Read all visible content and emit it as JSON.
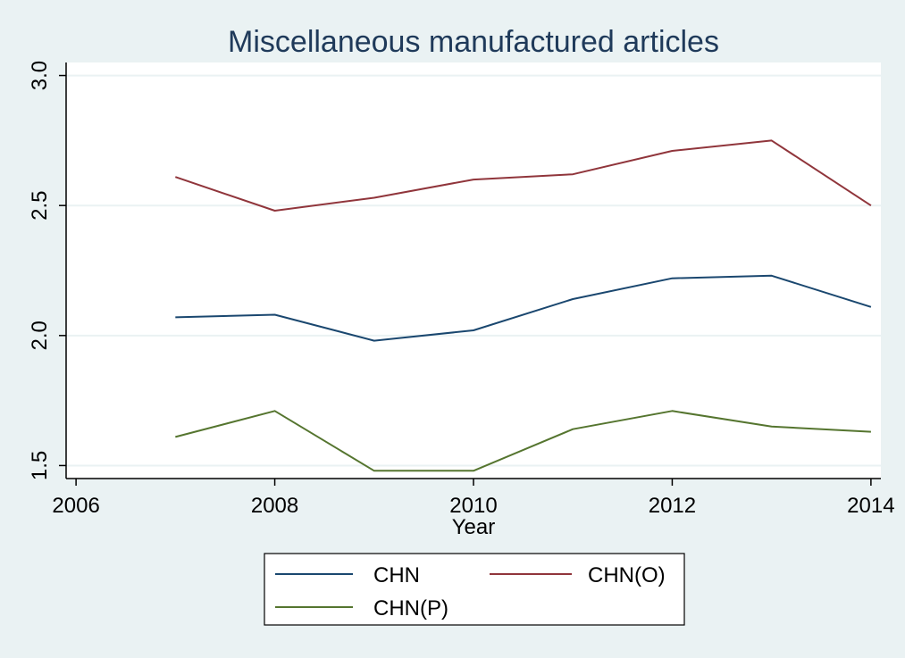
{
  "chart_data": {
    "type": "line",
    "title": "Miscellaneous manufactured articles",
    "xlabel": "Year",
    "ylabel": "",
    "xlim": [
      2005.9,
      2014.1
    ],
    "ylim": [
      1.45,
      3.05
    ],
    "x_ticks": [
      2006,
      2008,
      2010,
      2012,
      2014
    ],
    "y_ticks": [
      1.5,
      2.0,
      2.5,
      3.0
    ],
    "y_tick_labels": [
      "1.5",
      "2.0",
      "2.5",
      "3.0"
    ],
    "grid": true,
    "legend_position": "bottom",
    "x": [
      2007,
      2008,
      2009,
      2010,
      2011,
      2012,
      2013,
      2014
    ],
    "series": [
      {
        "name": "CHN",
        "color": "#1a476f",
        "values": [
          2.07,
          2.08,
          1.98,
          2.02,
          2.14,
          2.22,
          2.23,
          2.11
        ]
      },
      {
        "name": "CHN(O)",
        "color": "#90353b",
        "values": [
          2.61,
          2.48,
          2.53,
          2.6,
          2.62,
          2.71,
          2.75,
          2.5
        ]
      },
      {
        "name": "CHN(P)",
        "color": "#55752f",
        "values": [
          1.61,
          1.71,
          1.48,
          1.48,
          1.64,
          1.71,
          1.65,
          1.63
        ]
      }
    ]
  },
  "colors": {
    "background": "#eaf2f3",
    "plot_background": "#ffffff",
    "grid": "#eaf2f3",
    "title": "#1f3a5a"
  }
}
